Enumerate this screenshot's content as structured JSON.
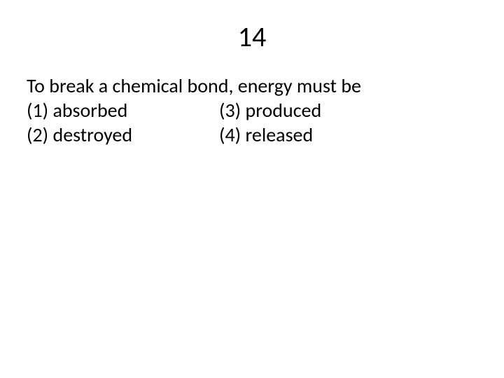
{
  "slide": {
    "number": "14",
    "background_color": "#ffffff",
    "text_color": "#000000",
    "title_fontsize": 40,
    "body_fontsize": 28
  },
  "question": {
    "stem": "To break a chemical bond, energy must be",
    "options": {
      "opt1": "(1) absorbed",
      "opt2": "(2) destroyed",
      "opt3": "(3) produced",
      "opt4": "(4) released"
    }
  }
}
